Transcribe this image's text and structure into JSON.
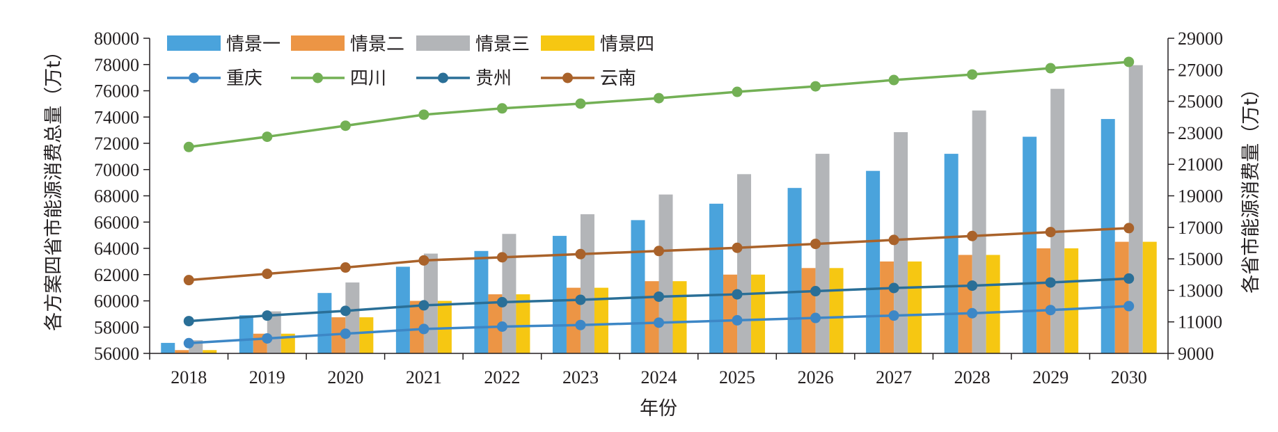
{
  "chart_data": {
    "type": "bar",
    "categories": [
      "2018",
      "2019",
      "2020",
      "2021",
      "2022",
      "2023",
      "2024",
      "2025",
      "2026",
      "2027",
      "2028",
      "2029",
      "2030"
    ],
    "xlabel": "年份",
    "ylabel": "各方案四省市能源消费总量（万t）",
    "ylabel_right": "各省市能源消费量（万t）",
    "ylim": [
      56000,
      80000
    ],
    "ylim_right": [
      9000,
      29000
    ],
    "y_ticks": [
      56000,
      58000,
      60000,
      62000,
      64000,
      66000,
      68000,
      70000,
      72000,
      74000,
      76000,
      78000,
      80000
    ],
    "y_ticks_right": [
      9000,
      11000,
      13000,
      15000,
      17000,
      19000,
      21000,
      23000,
      25000,
      27000,
      29000
    ],
    "grid": false,
    "legend_position": "top-left",
    "bar_series": [
      {
        "name": "情景一",
        "color": "#4aa3dc",
        "values": [
          56800,
          58900,
          60600,
          62600,
          63800,
          64950,
          66150,
          67400,
          68600,
          69900,
          71200,
          72500,
          73850
        ]
      },
      {
        "name": "情景二",
        "color": "#ec9545",
        "values": [
          56250,
          57500,
          58750,
          60000,
          60500,
          61000,
          61500,
          62000,
          62500,
          63000,
          63500,
          64000,
          64500
        ]
      },
      {
        "name": "情景三",
        "color": "#b3b5b8",
        "values": [
          57000,
          59200,
          61400,
          63600,
          65100,
          66600,
          68100,
          69650,
          71200,
          72850,
          74500,
          76150,
          77950
        ]
      },
      {
        "name": "情景四",
        "color": "#f6c712",
        "values": [
          56250,
          57500,
          58750,
          60000,
          60500,
          61000,
          61500,
          62000,
          62500,
          63000,
          63500,
          64000,
          64500
        ]
      }
    ],
    "line_series": [
      {
        "name": "重庆",
        "color": "#3d87c6",
        "values": [
          9650,
          9950,
          10250,
          10550,
          10700,
          10800,
          10950,
          11100,
          11250,
          11400,
          11550,
          11750,
          12000
        ]
      },
      {
        "name": "四川",
        "color": "#73b055",
        "values": [
          22100,
          22750,
          23450,
          24150,
          24550,
          24850,
          25200,
          25600,
          25950,
          26350,
          26700,
          27100,
          27500
        ]
      },
      {
        "name": "贵州",
        "color": "#2a6f97",
        "values": [
          11050,
          11400,
          11700,
          12050,
          12250,
          12400,
          12600,
          12750,
          12950,
          13150,
          13300,
          13500,
          13750
        ]
      },
      {
        "name": "云南",
        "color": "#a9622a",
        "values": [
          13650,
          14050,
          14450,
          14900,
          15100,
          15300,
          15500,
          15700,
          15950,
          16200,
          16450,
          16700,
          16950
        ]
      }
    ]
  }
}
